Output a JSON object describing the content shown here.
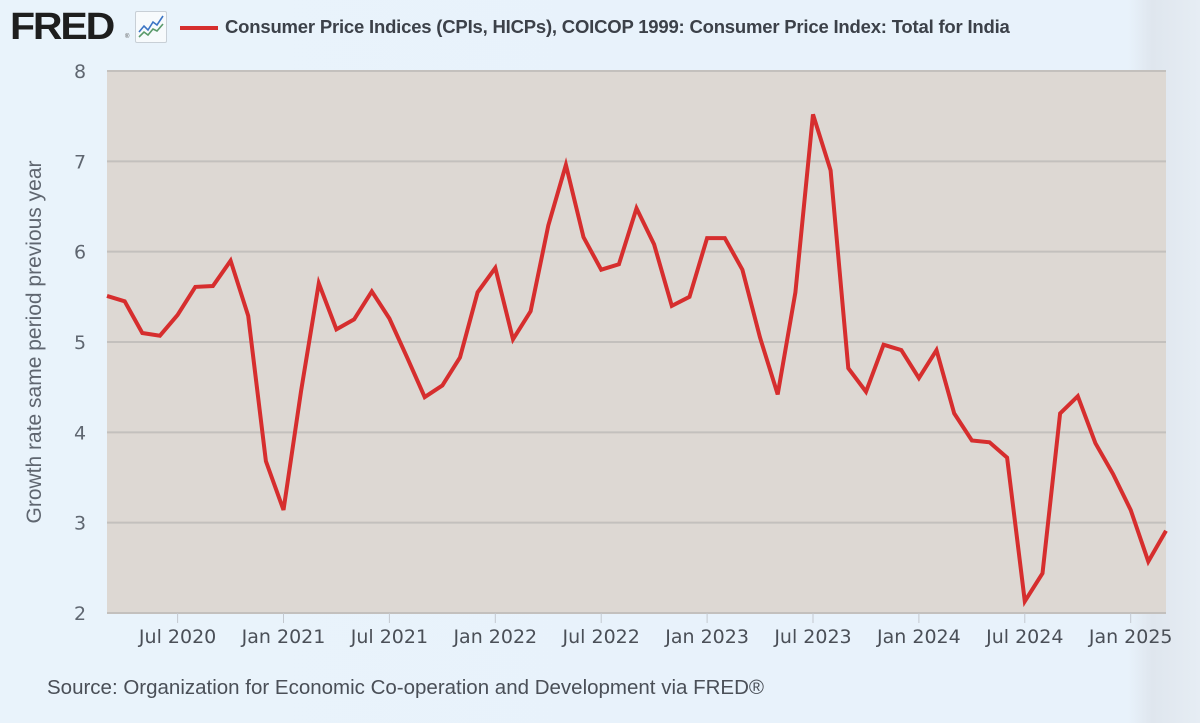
{
  "header": {
    "logo_text": "FRED",
    "logo_reg": "®",
    "logo_icon": "line-chart-icon",
    "legend_label": "Consumer Price Indices (CPIs, HICPs), COICOP 1999: Consumer Price Index: Total for India",
    "series_color": "#d62e2e"
  },
  "footer": {
    "source": "Source: Organization for Economic Co-operation and Development via FRED®"
  },
  "chart_data": {
    "type": "line",
    "title": "Consumer Price Indices (CPIs, HICPs), COICOP 1999: Consumer Price Index: Total for India",
    "xlabel": "",
    "ylabel": "Growth rate same period previous year",
    "ylim": [
      2,
      8
    ],
    "yticks": [
      "2",
      "3",
      "4",
      "5",
      "6",
      "7",
      "8"
    ],
    "grid": true,
    "legend_position": "top-left",
    "plot_background": "#ddd8d3",
    "xticks": [
      {
        "label": "Jul 2020",
        "index": 4
      },
      {
        "label": "Jan 2021",
        "index": 10
      },
      {
        "label": "Jul 2021",
        "index": 16
      },
      {
        "label": "Jan 2022",
        "index": 22
      },
      {
        "label": "Jul 2022",
        "index": 28
      },
      {
        "label": "Jan 2023",
        "index": 34
      },
      {
        "label": "Jul 2023",
        "index": 40
      },
      {
        "label": "Jan 2024",
        "index": 46
      },
      {
        "label": "Jul 2024",
        "index": 52
      },
      {
        "label": "Jan 2025",
        "index": 58
      }
    ],
    "x_start": "2020-03",
    "x_end": "2025-03",
    "series": [
      {
        "name": "Consumer Price Index: Total for India",
        "color": "#d62e2e",
        "x": [
          "2020-03",
          "2020-04",
          "2020-05",
          "2020-06",
          "2020-07",
          "2020-08",
          "2020-09",
          "2020-10",
          "2020-11",
          "2020-12",
          "2021-01",
          "2021-02",
          "2021-03",
          "2021-04",
          "2021-05",
          "2021-06",
          "2021-07",
          "2021-08",
          "2021-09",
          "2021-10",
          "2021-11",
          "2021-12",
          "2022-01",
          "2022-02",
          "2022-03",
          "2022-04",
          "2022-05",
          "2022-06",
          "2022-07",
          "2022-08",
          "2022-09",
          "2022-10",
          "2022-11",
          "2022-12",
          "2023-01",
          "2023-02",
          "2023-03",
          "2023-04",
          "2023-05",
          "2023-06",
          "2023-07",
          "2023-08",
          "2023-09",
          "2023-10",
          "2023-11",
          "2023-12",
          "2024-01",
          "2024-02",
          "2024-03",
          "2024-04",
          "2024-05",
          "2024-06",
          "2024-07",
          "2024-08",
          "2024-09",
          "2024-10",
          "2024-11",
          "2024-12",
          "2025-01",
          "2025-02",
          "2025-03"
        ],
        "values": [
          5.51,
          5.45,
          5.1,
          5.07,
          5.3,
          5.61,
          5.62,
          5.9,
          5.29,
          3.68,
          3.14,
          4.46,
          5.65,
          5.14,
          5.25,
          5.56,
          5.26,
          4.83,
          4.39,
          4.52,
          4.83,
          5.55,
          5.82,
          5.03,
          5.34,
          6.29,
          6.96,
          6.16,
          5.8,
          5.86,
          6.48,
          6.08,
          5.4,
          5.5,
          6.15,
          6.15,
          5.8,
          5.05,
          4.42,
          5.55,
          7.52,
          6.9,
          4.71,
          4.45,
          4.97,
          4.91,
          4.6,
          4.91,
          4.21,
          3.91,
          3.89,
          3.72,
          2.13,
          2.44,
          4.21,
          4.4,
          3.88,
          3.54,
          3.14,
          2.57,
          2.91
        ]
      }
    ]
  }
}
